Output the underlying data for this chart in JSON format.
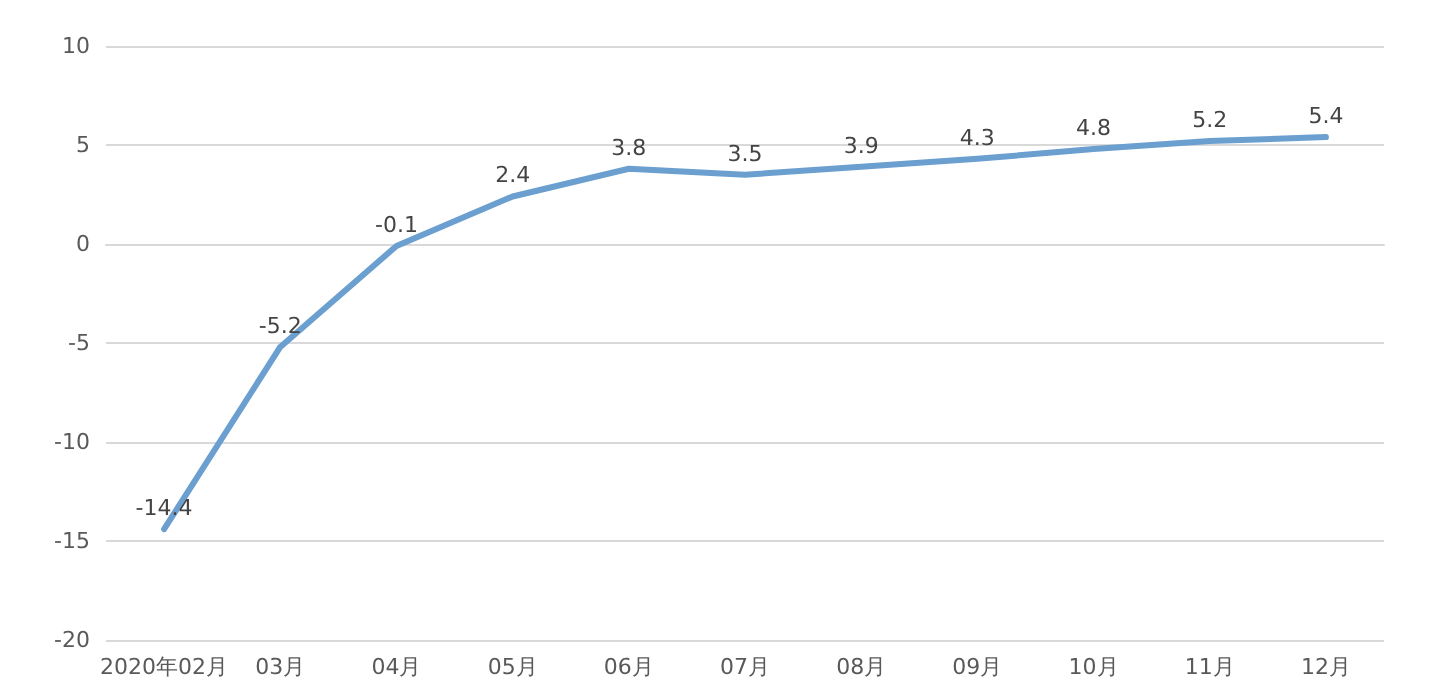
{
  "chart_data": {
    "type": "line",
    "categories": [
      "2020年02月",
      "03月",
      "04月",
      "05月",
      "06月",
      "07月",
      "08月",
      "09月",
      "10月",
      "11月",
      "12月"
    ],
    "series": [
      {
        "color": "#6a9fcf",
        "values": [
          -14.4,
          -5.2,
          -0.1,
          2.4,
          3.8,
          3.5,
          3.9,
          4.3,
          4.8,
          5.2,
          5.4
        ]
      }
    ],
    "ylim": [
      -20,
      10
    ],
    "yticks": [
      -20,
      -15,
      -10,
      -5,
      0,
      5,
      10
    ],
    "grid": "y",
    "data_labels": true,
    "marker": "none",
    "line_style": "solid"
  }
}
